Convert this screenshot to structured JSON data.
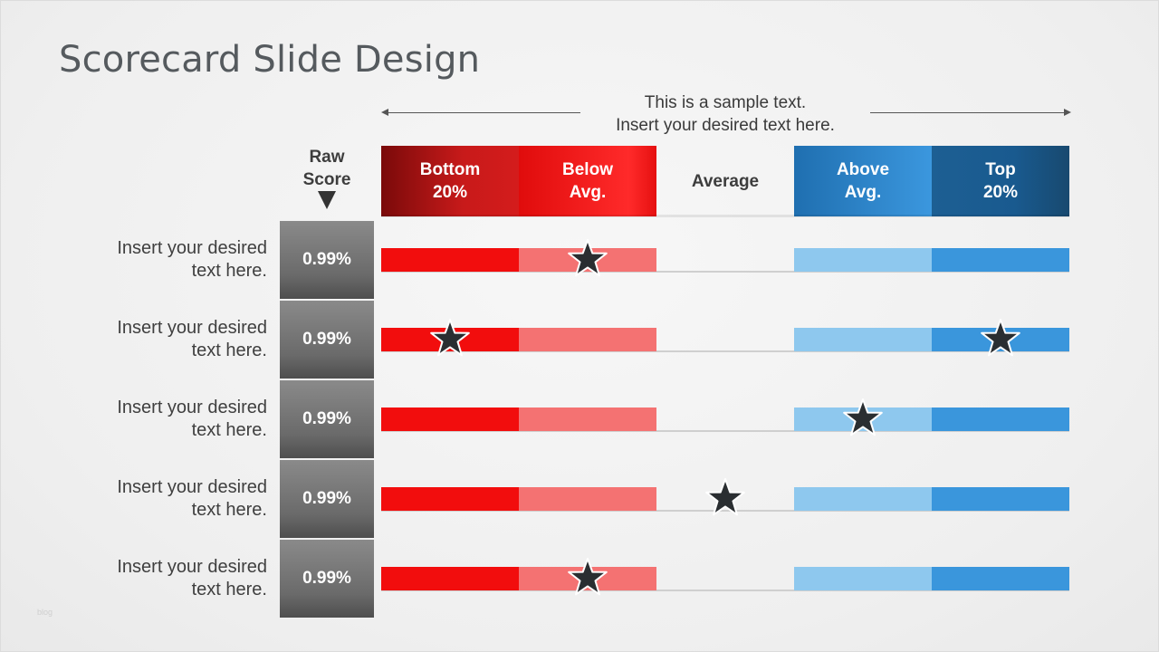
{
  "title": "Scorecard Slide Design",
  "sample_text": [
    "This is a sample text.",
    "Insert your desired text here."
  ],
  "raw_score_label": [
    "Raw",
    "Score"
  ],
  "headers": [
    {
      "lines": [
        "Bottom",
        "20%"
      ],
      "color": "#b01212"
    },
    {
      "lines": [
        "Below",
        "Avg."
      ],
      "color": "#f51b1b"
    },
    {
      "lines": [
        "Average"
      ],
      "color": "none"
    },
    {
      "lines": [
        "Above",
        "Avg."
      ],
      "color": "#3088cf"
    },
    {
      "lines": [
        "Top",
        "20%"
      ],
      "color": "#1b5688"
    }
  ],
  "rows": [
    {
      "label": [
        "Insert your desired",
        "text here."
      ],
      "score": "0.99%",
      "stars": [
        "Below Avg."
      ]
    },
    {
      "label": [
        "Insert your desired",
        "text here."
      ],
      "score": "0.99%",
      "stars": [
        "Bottom 20%",
        "Top 20%"
      ]
    },
    {
      "label": [
        "Insert your desired",
        "text here."
      ],
      "score": "0.99%",
      "stars": [
        "Above Avg."
      ]
    },
    {
      "label": [
        "Insert your desired",
        "text here."
      ],
      "score": "0.99%",
      "stars": [
        "Average"
      ]
    },
    {
      "label": [
        "Insert your desired",
        "text here."
      ],
      "score": "0.99%",
      "stars": [
        "Below Avg."
      ]
    }
  ],
  "footer_mark": "blog",
  "colors": {
    "bottom": "#f20d0d",
    "below": "#f47272",
    "above": "#8ec8ee",
    "top": "#3a96dc",
    "score_box": "#6f6f6f",
    "star": "#2a2e31"
  }
}
